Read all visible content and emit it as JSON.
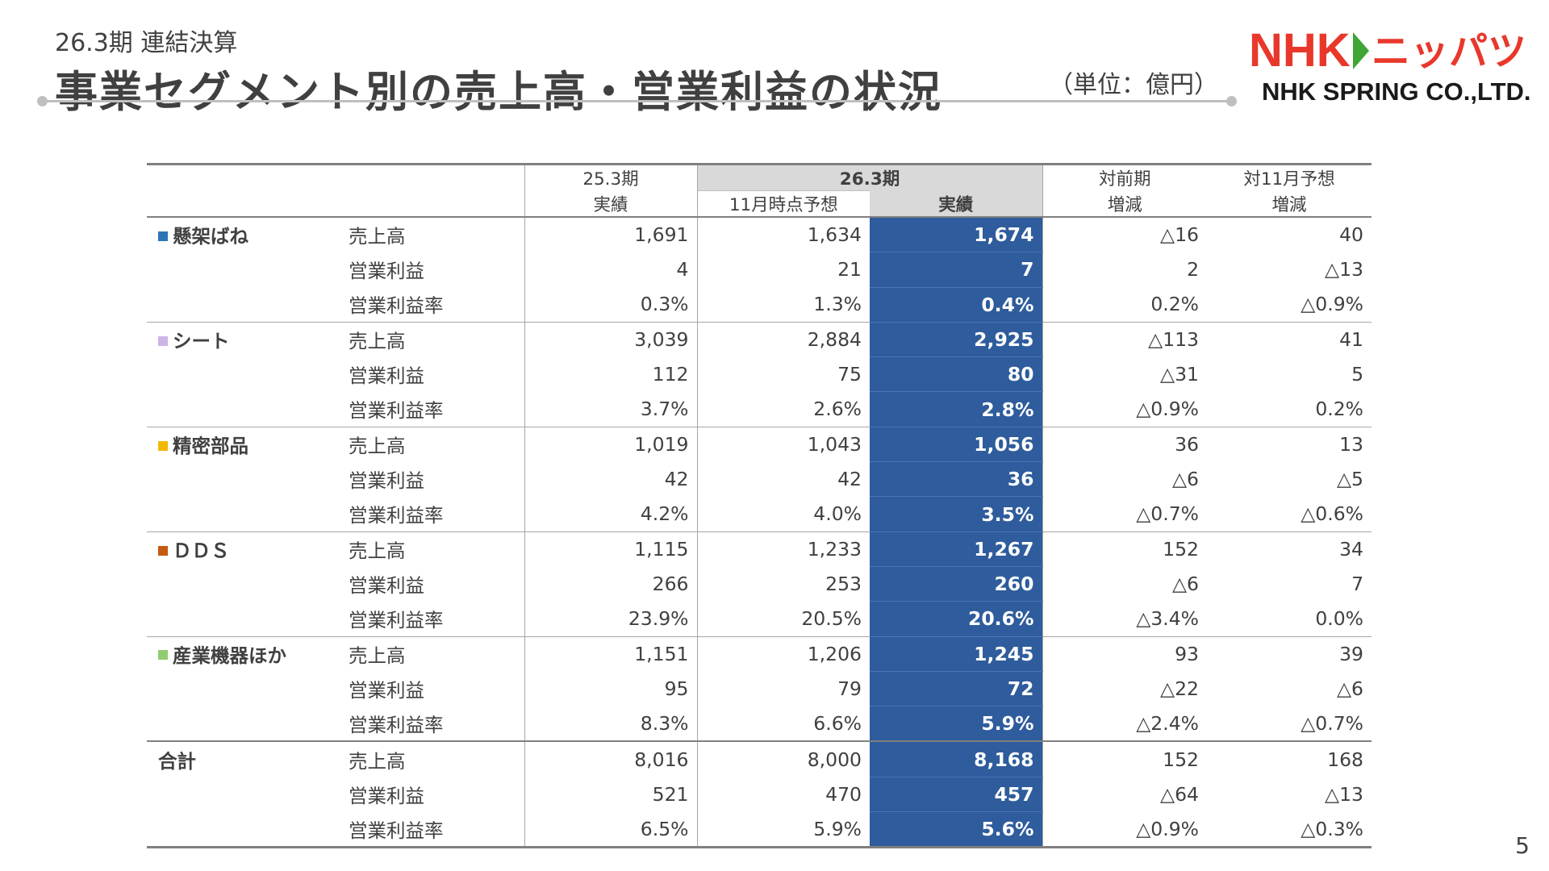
{
  "header": {
    "subtitle": "26.3期 連結決算",
    "title": "事業セグメント別の売上高・営業利益の状況",
    "unit": "（単位：億円）"
  },
  "logo": {
    "brand_en": "NHK",
    "brand_jp": "ニッパツ",
    "company": "NHK SPRING CO.,LTD."
  },
  "page_number": "5",
  "colors": {
    "accent_red": "#e8382b",
    "brand_green": "#3fa535",
    "highlight_blue": "#2e5c9c",
    "header_gray": "#d9d9d9"
  },
  "table": {
    "headers": {
      "prev_period": "25.3期",
      "prev_actual": "実績",
      "cur_period": "26.3期",
      "nov_forecast": "11月時点予想",
      "cur_actual": "実績",
      "vs_prev_1": "対前期",
      "vs_prev_2": "増減",
      "vs_nov_1": "対11月予想",
      "vs_nov_2": "増減"
    },
    "segments": [
      {
        "name": "懸架ばね",
        "color": "#2e75b6",
        "rows": [
          {
            "item": "売上高",
            "prev": "1,691",
            "forecast": "1,634",
            "actual": "1,674",
            "diff_prev": "△16",
            "diff_forecast": "40"
          },
          {
            "item": "営業利益",
            "prev": "4",
            "forecast": "21",
            "actual": "7",
            "diff_prev": "2",
            "diff_forecast": "△13"
          },
          {
            "item": "営業利益率",
            "prev": "0.3%",
            "forecast": "1.3%",
            "actual": "0.4%",
            "diff_prev": "0.2%",
            "diff_forecast": "△0.9%"
          }
        ]
      },
      {
        "name": "シート",
        "color": "#cdb4e6",
        "rows": [
          {
            "item": "売上高",
            "prev": "3,039",
            "forecast": "2,884",
            "actual": "2,925",
            "diff_prev": "△113",
            "diff_forecast": "41"
          },
          {
            "item": "営業利益",
            "prev": "112",
            "forecast": "75",
            "actual": "80",
            "diff_prev": "△31",
            "diff_forecast": "5"
          },
          {
            "item": "営業利益率",
            "prev": "3.7%",
            "forecast": "2.6%",
            "actual": "2.8%",
            "diff_prev": "△0.9%",
            "diff_forecast": "0.2%"
          }
        ]
      },
      {
        "name": "精密部品",
        "color": "#f2b800",
        "rows": [
          {
            "item": "売上高",
            "prev": "1,019",
            "forecast": "1,043",
            "actual": "1,056",
            "diff_prev": "36",
            "diff_forecast": "13"
          },
          {
            "item": "営業利益",
            "prev": "42",
            "forecast": "42",
            "actual": "36",
            "diff_prev": "△6",
            "diff_forecast": "△5"
          },
          {
            "item": "営業利益率",
            "prev": "4.2%",
            "forecast": "4.0%",
            "actual": "3.5%",
            "diff_prev": "△0.7%",
            "diff_forecast": "△0.6%"
          }
        ]
      },
      {
        "name": "ＤＤＳ",
        "color": "#c55a11",
        "rows": [
          {
            "item": "売上高",
            "prev": "1,115",
            "forecast": "1,233",
            "actual": "1,267",
            "diff_prev": "152",
            "diff_forecast": "34"
          },
          {
            "item": "営業利益",
            "prev": "266",
            "forecast": "253",
            "actual": "260",
            "diff_prev": "△6",
            "diff_forecast": "7"
          },
          {
            "item": "営業利益率",
            "prev": "23.9%",
            "forecast": "20.5%",
            "actual": "20.6%",
            "diff_prev": "△3.4%",
            "diff_forecast": "0.0%"
          }
        ]
      },
      {
        "name": "産業機器ほか",
        "color": "#8fce6f",
        "rows": [
          {
            "item": "売上高",
            "prev": "1,151",
            "forecast": "1,206",
            "actual": "1,245",
            "diff_prev": "93",
            "diff_forecast": "39"
          },
          {
            "item": "営業利益",
            "prev": "95",
            "forecast": "79",
            "actual": "72",
            "diff_prev": "△22",
            "diff_forecast": "△6"
          },
          {
            "item": "営業利益率",
            "prev": "8.3%",
            "forecast": "6.6%",
            "actual": "5.9%",
            "diff_prev": "△2.4%",
            "diff_forecast": "△0.7%"
          }
        ]
      },
      {
        "name": "合計",
        "color": "",
        "rows": [
          {
            "item": "売上高",
            "prev": "8,016",
            "forecast": "8,000",
            "actual": "8,168",
            "diff_prev": "152",
            "diff_forecast": "168"
          },
          {
            "item": "営業利益",
            "prev": "521",
            "forecast": "470",
            "actual": "457",
            "diff_prev": "△64",
            "diff_forecast": "△13"
          },
          {
            "item": "営業利益率",
            "prev": "6.5%",
            "forecast": "5.9%",
            "actual": "5.6%",
            "diff_prev": "△0.9%",
            "diff_forecast": "△0.3%"
          }
        ]
      }
    ]
  }
}
